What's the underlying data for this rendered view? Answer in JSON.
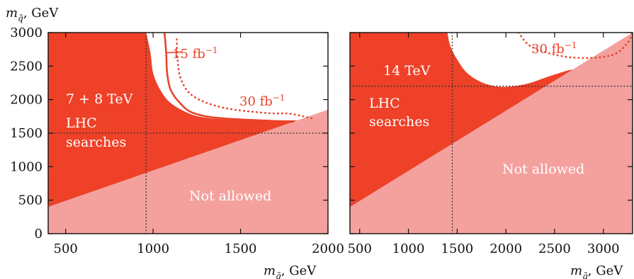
{
  "colors": {
    "excluded": "#ee4128",
    "not_allowed": "#f4a19e",
    "allowed": "#ffffff",
    "contour": "#e8442a",
    "frame": "#111111",
    "guide": "#333333"
  },
  "ylabel_text": "m",
  "ylabel_sub": "q̃",
  "ylabel_unit": ", GeV",
  "xlabel_text": "m",
  "xlabel_sub": "g̃",
  "xlabel_unit": ", GeV",
  "chart_data": [
    {
      "type": "area",
      "panel": "left",
      "title": "",
      "xlabel": "m_g̃, GeV",
      "ylabel": "m_q̃, GeV",
      "xlim": [
        400,
        2000
      ],
      "ylim": [
        0,
        3000
      ],
      "xticks": [
        500,
        1000,
        1500,
        2000
      ],
      "yticks": [
        0,
        500,
        1000,
        1500,
        2000,
        2500,
        3000
      ],
      "not_allowed_boundary": [
        [
          400,
          400
        ],
        [
          2000,
          1850
        ]
      ],
      "excluded_boundary": [
        [
          960,
          3000
        ],
        [
          985,
          2700
        ],
        [
          1000,
          2400
        ],
        [
          1040,
          2150
        ],
        [
          1100,
          1950
        ],
        [
          1200,
          1800
        ],
        [
          1300,
          1730
        ],
        [
          1460,
          1700
        ],
        [
          1600,
          1690
        ]
      ],
      "contours": [
        {
          "name": "15 fb⁻¹",
          "style": "solid",
          "points": [
            [
              1065,
              3000
            ],
            [
              1075,
              2700
            ],
            [
              1080,
              2400
            ],
            [
              1100,
              2150
            ],
            [
              1150,
              1960
            ],
            [
              1230,
              1800
            ],
            [
              1400,
              1720
            ],
            [
              1800,
              1670
            ]
          ]
        },
        {
          "name": "30 fb⁻¹",
          "style": "dotted",
          "points": [
            [
              1135,
              2900
            ],
            [
              1140,
              2600
            ],
            [
              1160,
              2300
            ],
            [
              1230,
              2050
            ],
            [
              1400,
              1880
            ],
            [
              1650,
              1800
            ],
            [
              1780,
              1790
            ],
            [
              1910,
              1720
            ]
          ]
        }
      ],
      "guides": {
        "x": 960,
        "y": 1500
      },
      "labels": {
        "energy": "7 + 8 TeV",
        "lhc": "LHC",
        "searches": "searches",
        "not_allowed": "Not allowed"
      }
    },
    {
      "type": "area",
      "panel": "right",
      "title": "",
      "xlabel": "m_g̃, GeV",
      "ylabel": "",
      "xlim": [
        400,
        3300
      ],
      "ylim": [
        0,
        3000
      ],
      "xticks": [
        500,
        1000,
        1500,
        2000,
        2500,
        3000
      ],
      "yticks": [
        0,
        500,
        1000,
        1500,
        2000,
        2500,
        3000
      ],
      "not_allowed_boundary": [
        [
          400,
          400
        ],
        [
          3300,
          3000
        ]
      ],
      "excluded_boundary": [
        [
          1400,
          3000
        ],
        [
          1430,
          2800
        ],
        [
          1500,
          2600
        ],
        [
          1600,
          2400
        ],
        [
          1750,
          2260
        ],
        [
          1950,
          2190
        ],
        [
          2200,
          2230
        ],
        [
          2450,
          2350
        ],
        [
          2650,
          2440
        ],
        [
          2700,
          2440
        ]
      ],
      "contours": [
        {
          "name": "30 fb⁻¹",
          "style": "dotted",
          "points": [
            [
              2130,
              3000
            ],
            [
              2250,
              2800
            ],
            [
              2500,
              2670
            ],
            [
              2800,
              2620
            ],
            [
              3100,
              2670
            ],
            [
              3250,
              2850
            ],
            [
              3300,
              3000
            ]
          ]
        }
      ],
      "guides": {
        "x": 1450,
        "y": 2200
      },
      "labels": {
        "energy": "14 TeV",
        "lhc": "LHC",
        "searches": "searches",
        "not_allowed": "Not allowed"
      }
    }
  ],
  "contour_labels": {
    "left_15": "15 fb",
    "left_30": "30 fb",
    "right_30": "30 fb",
    "sup": "−1"
  }
}
